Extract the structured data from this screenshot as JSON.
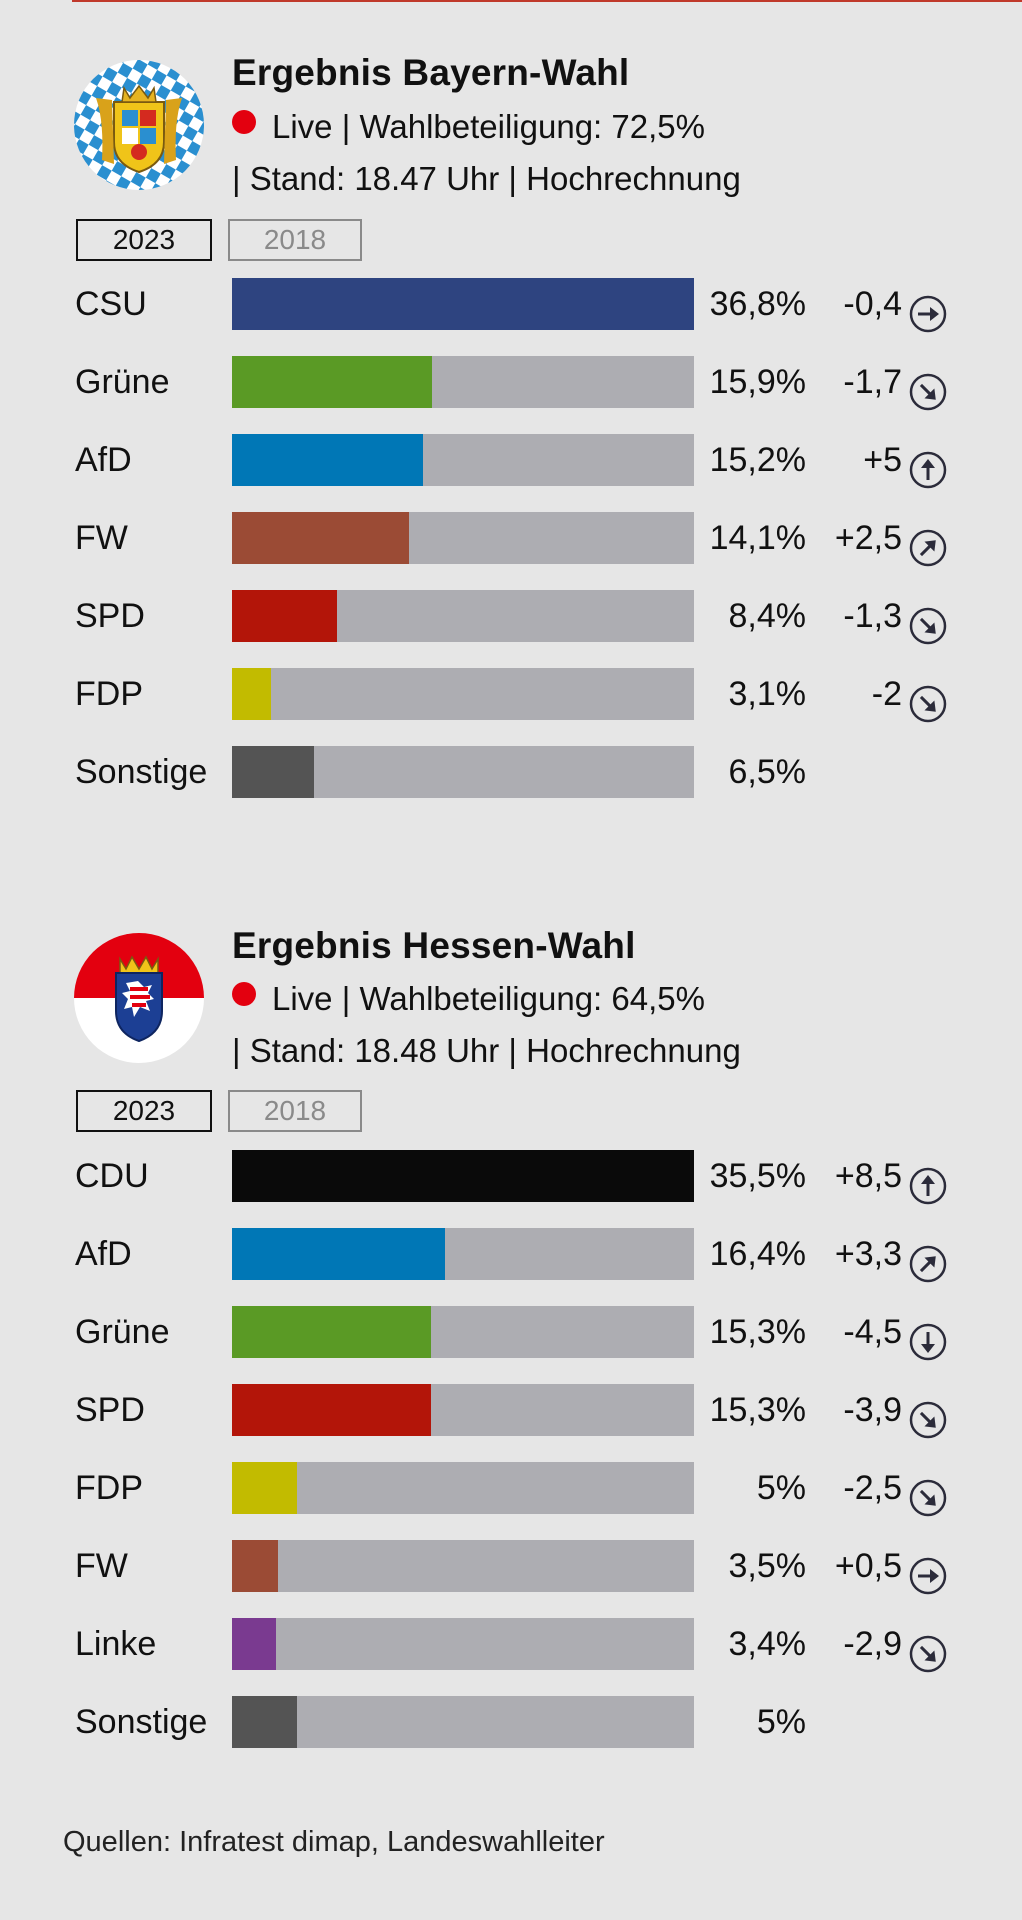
{
  "colors": {
    "CSU": "#2e4480",
    "CDU": "#0a0a0a",
    "Grüne": "#5a9a25",
    "AfD": "#0077b6",
    "FW": "#9b4b35",
    "SPD": "#b31509",
    "FDP": "#c2bb00",
    "Linke": "#7a3a90",
    "Sonstige": "#545454",
    "track": "#adadb2",
    "live": "#e3000f"
  },
  "bayern": {
    "title": "Ergebnis Bayern-Wahl",
    "crest_icon": "bavaria-coat-of-arms-icon",
    "meta_line1": "Live | Wahlbeteiligung: 72,5%",
    "meta_line2": "| Stand: 18.47 Uhr | Hochrechnung",
    "tabs": [
      {
        "label": "2023",
        "active": true
      },
      {
        "label": "2018",
        "active": false
      }
    ]
  },
  "hessen": {
    "title": "Ergebnis Hessen-Wahl",
    "crest_icon": "hesse-coat-of-arms-icon",
    "meta_line1": "Live | Wahlbeteiligung: 64,5%",
    "meta_line2": "| Stand: 18.48 Uhr | Hochrechnung",
    "tabs": [
      {
        "label": "2023",
        "active": true
      },
      {
        "label": "2018",
        "active": false
      }
    ]
  },
  "source": "Quellen: Infratest dimap, Landeswahlleiter",
  "chart_data": [
    {
      "type": "bar",
      "orientation": "horizontal",
      "title": "Ergebnis Bayern-Wahl",
      "categories": [
        "CSU",
        "Grüne",
        "AfD",
        "FW",
        "SPD",
        "FDP",
        "Sonstige"
      ],
      "values": [
        36.8,
        15.9,
        15.2,
        14.1,
        8.4,
        3.1,
        6.5
      ],
      "value_labels": [
        "36,8%",
        "15,9%",
        "15,2%",
        "14,1%",
        "8,4%",
        "3,1%",
        "6,5%"
      ],
      "change_labels": [
        "-0,4",
        "-1,7",
        "+5",
        "+2,5",
        "-1,3",
        "-2",
        ""
      ],
      "change_icons": [
        "arrow-right-icon",
        "arrow-down-right-icon",
        "arrow-up-icon",
        "arrow-up-right-icon",
        "arrow-down-right-icon",
        "arrow-down-right-icon",
        ""
      ],
      "xlim": [
        0,
        36.8
      ]
    },
    {
      "type": "bar",
      "orientation": "horizontal",
      "title": "Ergebnis Hessen-Wahl",
      "categories": [
        "CDU",
        "AfD",
        "Grüne",
        "SPD",
        "FDP",
        "FW",
        "Linke",
        "Sonstige"
      ],
      "values": [
        35.5,
        16.4,
        15.3,
        15.3,
        5,
        3.5,
        3.4,
        5
      ],
      "value_labels": [
        "35,5%",
        "16,4%",
        "15,3%",
        "15,3%",
        "5%",
        "3,5%",
        "3,4%",
        "5%"
      ],
      "change_labels": [
        "+8,5",
        "+3,3",
        "-4,5",
        "-3,9",
        "-2,5",
        "+0,5",
        "-2,9",
        ""
      ],
      "change_icons": [
        "arrow-up-icon",
        "arrow-up-right-icon",
        "arrow-down-icon",
        "arrow-down-right-icon",
        "arrow-down-right-icon",
        "arrow-right-icon",
        "arrow-down-right-icon",
        ""
      ],
      "xlim": [
        0,
        35.5
      ]
    }
  ]
}
